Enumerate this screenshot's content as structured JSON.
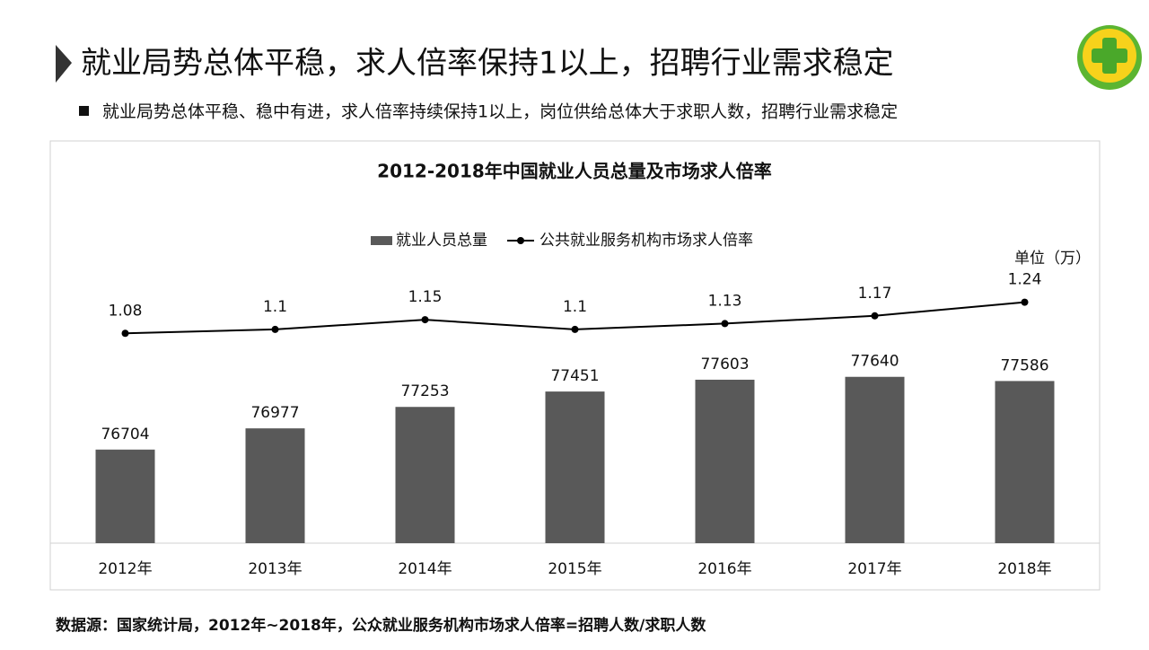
{
  "title": "就业局势总体平稳，求人倍率保持1以上，招聘行业需求稳定",
  "bullet": "就业局势总体平稳、稳中有进，求人倍率持续保持1以上，岗位供给总体大于求职人数，招聘行业需求稳定",
  "source": "数据源：国家统计局，2012年~2018年，公众就业服务机构市场求人倍率=招聘人数/求职人数",
  "chart_data": {
    "type": "bar",
    "title": "2012-2018年中国就业人员总量及市场求人倍率",
    "unit_note": "单位（万）",
    "legend": "top",
    "categories": [
      "2012年",
      "2013年",
      "2014年",
      "2015年",
      "2016年",
      "2017年",
      "2018年"
    ],
    "ylim": [
      75500,
      79000
    ],
    "y2lim": [
      0,
      1.4
    ],
    "series": [
      {
        "name": "就业人员总量",
        "type": "bar",
        "color": "#595959",
        "values": [
          76704,
          76977,
          77253,
          77451,
          77603,
          77640,
          77586
        ]
      },
      {
        "name": "公共就业服务机构市场求人倍率",
        "type": "line",
        "axis": "y2",
        "color": "#000000",
        "values": [
          1.08,
          1.1,
          1.15,
          1.1,
          1.13,
          1.17,
          1.24
        ]
      }
    ]
  }
}
